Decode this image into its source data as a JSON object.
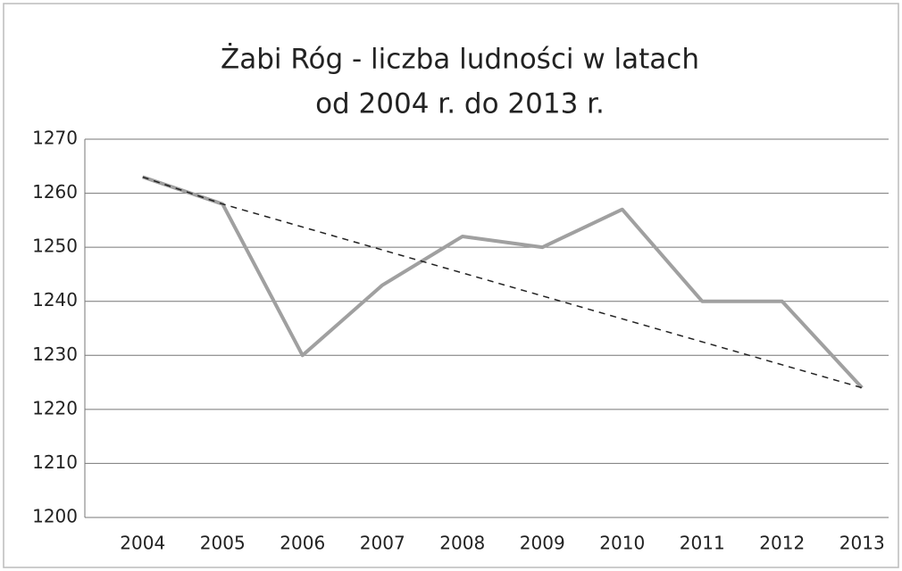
{
  "chart_data": {
    "type": "line",
    "title": [
      "Żabi Róg - liczba ludności w latach",
      "od 2004 r. do 2013 r."
    ],
    "categories": [
      "2004",
      "2005",
      "2006",
      "2007",
      "2008",
      "2009",
      "2010",
      "2011",
      "2012",
      "2013"
    ],
    "series": [
      {
        "color": "#a0a0a0",
        "values": [
          1263,
          1258,
          1230,
          1243,
          1252,
          1250,
          1257,
          1240,
          1240,
          1224
        ]
      },
      {
        "color": "#222222",
        "dashed": true,
        "connect_gaps": true,
        "values": [
          1263,
          1258,
          null,
          null,
          null,
          null,
          null,
          null,
          null,
          1224
        ]
      }
    ],
    "ylim": [
      1200,
      1270
    ],
    "yticks": [
      1200,
      1210,
      1220,
      1230,
      1240,
      1250,
      1260,
      1270
    ],
    "grid": true
  }
}
